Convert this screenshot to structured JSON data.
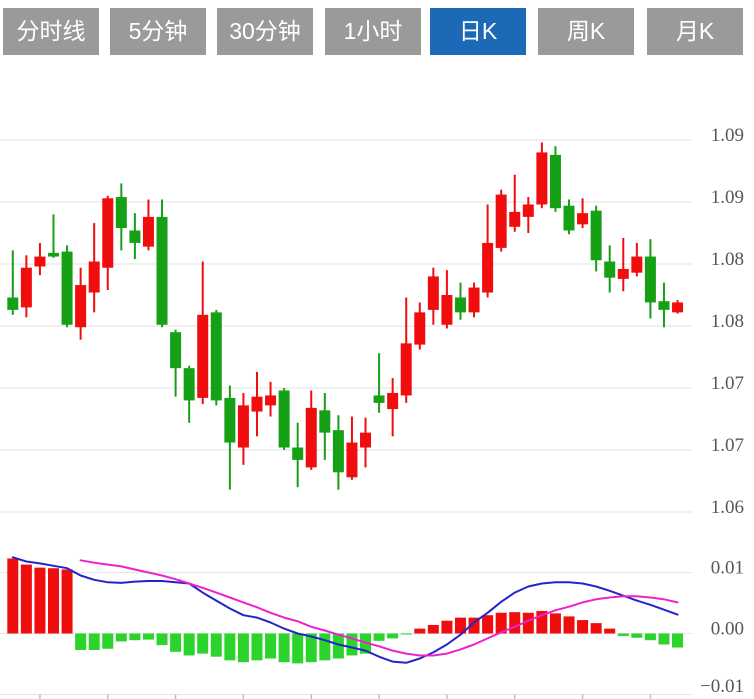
{
  "toolbar": {
    "active_index": 4,
    "buttons": [
      {
        "label": "分时线"
      },
      {
        "label": "5分钟"
      },
      {
        "label": "30分钟"
      },
      {
        "label": "1小时"
      },
      {
        "label": "日K"
      },
      {
        "label": "周K"
      },
      {
        "label": "月K"
      }
    ]
  },
  "colors": {
    "up_candle": "#ef0d0d",
    "down_candle": "#16a016",
    "macd_positive_bar": "#ef0d0d",
    "macd_negative_bar": "#2bd42b",
    "dif_line": "#2424c8",
    "dea_line": "#ee22cc",
    "gridline": "#e7e7e7",
    "axis_label": "#565656",
    "button_bg": "#9a9a9a",
    "button_active_bg": "#1b69b7",
    "button_text": "#ffffff"
  },
  "chart_data": {
    "type": "candlestick",
    "convention": "red = up (close > open), green = down; daily K-line with MACD sub-panel",
    "price_panel": {
      "y_gridline_values": [
        1.09,
        1.085,
        1.08,
        1.075,
        1.07,
        1.065,
        1.06
      ],
      "y_gridline_labels": [
        "1.09",
        "1.09",
        "1.08",
        "1.08",
        "1.07",
        "1.07",
        "1.06"
      ],
      "candles_ohlc": [
        [
          1.0773,
          1.0811,
          1.0759,
          1.0763
        ],
        [
          1.0765,
          1.0807,
          1.0757,
          1.0797
        ],
        [
          1.0798,
          1.0817,
          1.0791,
          1.0806
        ],
        [
          1.0809,
          1.084,
          1.0805,
          1.0806
        ],
        [
          1.081,
          1.0815,
          1.0749,
          1.0751
        ],
        [
          1.0749,
          1.0797,
          1.0739,
          1.0783
        ],
        [
          1.0777,
          1.0833,
          1.0761,
          1.0802
        ],
        [
          1.0797,
          1.0855,
          1.0779,
          1.0853
        ],
        [
          1.0854,
          1.0865,
          1.0811,
          1.0829
        ],
        [
          1.0827,
          1.0841,
          1.0804,
          1.0817
        ],
        [
          1.0814,
          1.0852,
          1.0811,
          1.0838
        ],
        [
          1.0838,
          1.0852,
          1.0749,
          1.0751
        ],
        [
          1.0745,
          1.0747,
          1.0693,
          1.0716
        ],
        [
          1.0716,
          1.0718,
          1.0672,
          1.069
        ],
        [
          1.0692,
          1.0802,
          1.0687,
          1.0759
        ],
        [
          1.0761,
          1.0763,
          1.0686,
          1.069
        ],
        [
          1.0692,
          1.0702,
          1.0618,
          1.0656
        ],
        [
          1.0652,
          1.0696,
          1.0638,
          1.0686
        ],
        [
          1.0681,
          1.0713,
          1.0661,
          1.0693
        ],
        [
          1.0686,
          1.0705,
          1.0677,
          1.0694
        ],
        [
          1.0698,
          1.07,
          1.065,
          1.0652
        ],
        [
          1.0652,
          1.0672,
          1.062,
          1.0642
        ],
        [
          1.0636,
          1.0698,
          1.0634,
          1.0684
        ],
        [
          1.0682,
          1.0696,
          1.0642,
          1.0664
        ],
        [
          1.0666,
          1.0678,
          1.0618,
          1.0632
        ],
        [
          1.0628,
          1.0677,
          1.0626,
          1.0656
        ],
        [
          1.0652,
          1.0676,
          1.0636,
          1.0664
        ],
        [
          1.0694,
          1.0728,
          1.068,
          1.0688
        ],
        [
          1.0683,
          1.0708,
          1.0661,
          1.0696
        ],
        [
          1.0694,
          1.0773,
          1.0688,
          1.0736
        ],
        [
          1.0735,
          1.0769,
          1.0731,
          1.0761
        ],
        [
          1.0763,
          1.0797,
          1.0751,
          1.079
        ],
        [
          1.0751,
          1.0795,
          1.0748,
          1.0775
        ],
        [
          1.0773,
          1.0785,
          1.0755,
          1.0761
        ],
        [
          1.0761,
          1.0785,
          1.0757,
          1.0781
        ],
        [
          1.0777,
          1.0848,
          1.0773,
          1.0817
        ],
        [
          1.0813,
          1.086,
          1.081,
          1.0856
        ],
        [
          1.083,
          1.0872,
          1.0826,
          1.0842
        ],
        [
          1.0838,
          1.0854,
          1.0825,
          1.0848
        ],
        [
          1.0848,
          1.0898,
          1.0845,
          1.089
        ],
        [
          1.0888,
          1.0895,
          1.0842,
          1.0845
        ],
        [
          1.0847,
          1.0852,
          1.0824,
          1.0827
        ],
        [
          1.0832,
          1.0853,
          1.0829,
          1.0841
        ],
        [
          1.0843,
          1.0847,
          1.0794,
          1.0803
        ],
        [
          1.0802,
          1.0815,
          1.0777,
          1.0789
        ],
        [
          1.0788,
          1.0821,
          1.0778,
          1.0796
        ],
        [
          1.0793,
          1.0817,
          1.079,
          1.0806
        ],
        [
          1.0806,
          1.082,
          1.0756,
          1.0769
        ],
        [
          1.077,
          1.0785,
          1.0749,
          1.0763
        ],
        [
          1.0761,
          1.0771,
          1.076,
          1.0769
        ]
      ]
    },
    "macd_panel": {
      "y_gridline_values": [
        0.01,
        0.0,
        -0.01
      ],
      "y_gridline_labels": [
        "0.01",
        "0.00",
        "−0.01"
      ],
      "histogram": [
        0.0123,
        0.0113,
        0.0108,
        0.0107,
        0.0105,
        -0.0027,
        -0.0027,
        -0.0025,
        -0.0013,
        -0.0011,
        -0.001,
        -0.0019,
        -0.003,
        -0.0036,
        -0.0033,
        -0.0038,
        -0.0044,
        -0.0047,
        -0.0044,
        -0.0041,
        -0.0047,
        -0.0049,
        -0.0047,
        -0.0044,
        -0.0041,
        -0.0036,
        -0.0033,
        -0.0012,
        -0.0008,
        -0.0001,
        0.0008,
        0.0014,
        0.0021,
        0.0026,
        0.0026,
        0.003,
        0.0034,
        0.0035,
        0.0034,
        0.0037,
        0.0033,
        0.0028,
        0.0022,
        0.0017,
        0.0008,
        -0.0004,
        -0.0007,
        -0.0011,
        -0.0018,
        -0.0023
      ],
      "dif": [
        0.0125,
        0.0118,
        0.0115,
        0.0111,
        0.0107,
        0.0095,
        0.0088,
        0.0084,
        0.0083,
        0.0085,
        0.0086,
        0.0086,
        0.0084,
        0.0082,
        0.0067,
        0.0054,
        0.0041,
        0.003,
        0.0026,
        0.0018,
        0.0008,
        0.0,
        -0.0005,
        -0.0011,
        -0.0018,
        -0.0023,
        -0.0028,
        -0.0038,
        -0.0046,
        -0.0048,
        -0.0041,
        -0.0031,
        -0.0018,
        -0.0002,
        0.0018,
        0.0034,
        0.0052,
        0.0067,
        0.0077,
        0.0082,
        0.0084,
        0.0084,
        0.0082,
        0.0077,
        0.007,
        0.0062,
        0.0054,
        0.0047,
        0.0039,
        0.0031
      ],
      "dea": [
        null,
        null,
        null,
        null,
        null,
        0.012,
        0.0116,
        0.0113,
        0.011,
        0.0105,
        0.01,
        0.0095,
        0.0089,
        0.0082,
        0.0075,
        0.0067,
        0.0059,
        0.0051,
        0.0043,
        0.0034,
        0.0026,
        0.002,
        0.0011,
        0.0005,
        -0.0002,
        -0.0008,
        -0.0015,
        -0.0021,
        -0.0028,
        -0.0033,
        -0.0036,
        -0.0036,
        -0.0033,
        -0.0026,
        -0.0018,
        -0.0008,
        0.0002,
        0.0011,
        0.0021,
        0.003,
        0.0038,
        0.0044,
        0.0051,
        0.0056,
        0.0059,
        0.0061,
        0.0061,
        0.0059,
        0.0056,
        0.0051
      ]
    }
  }
}
